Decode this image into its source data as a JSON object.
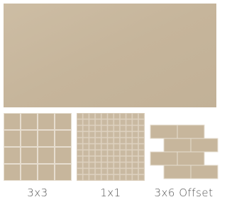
{
  "labels": [
    "3x3",
    "1x1",
    "3x6 Offset"
  ]
}
